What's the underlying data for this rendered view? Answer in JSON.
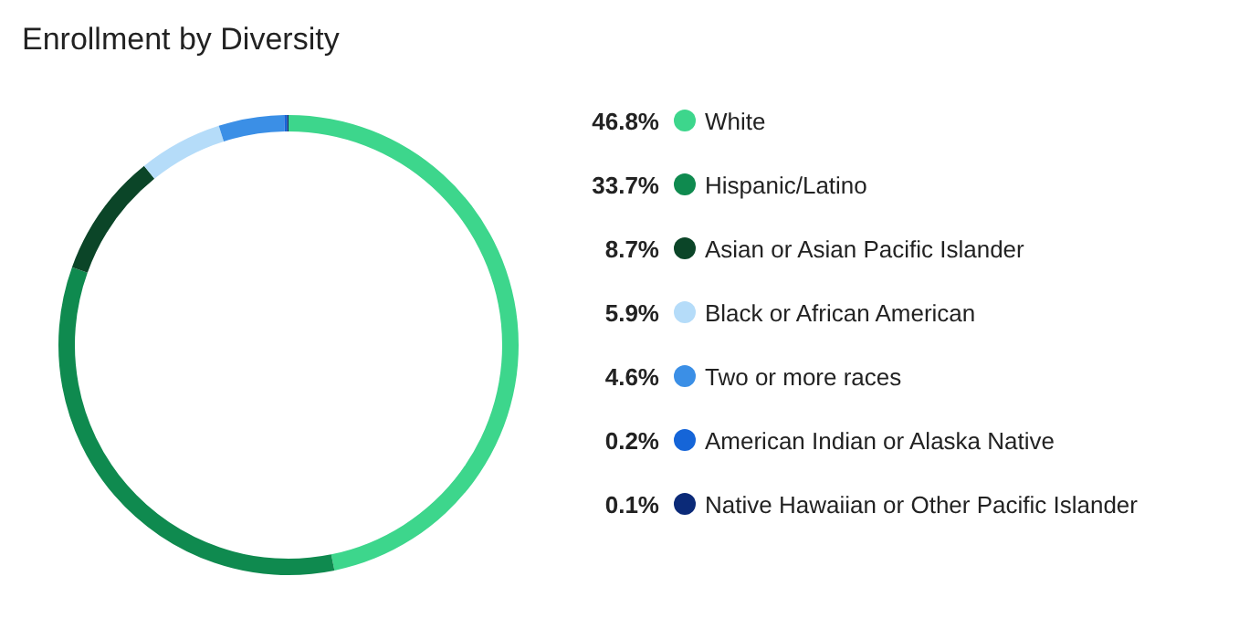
{
  "chart_data": {
    "type": "donut",
    "title": "Enrollment by Diversity",
    "categories": [
      "White",
      "Hispanic/Latino",
      "Asian or Asian Pacific Islander",
      "Black or African American",
      "Two or more races",
      "American Indian or Alaska Native",
      "Native Hawaiian or Other Pacific Islander"
    ],
    "values": [
      46.8,
      33.7,
      8.7,
      5.9,
      4.6,
      0.2,
      0.1
    ],
    "colors": [
      "#3dd68c",
      "#0f8a4f",
      "#0b4528",
      "#b5dcf9",
      "#3b8fe6",
      "#1565d8",
      "#0b2a78"
    ],
    "value_labels": [
      "46.8%",
      "33.7%",
      "8.7%",
      "5.9%",
      "4.6%",
      "0.2%",
      "0.1%"
    ],
    "legend": "right"
  }
}
